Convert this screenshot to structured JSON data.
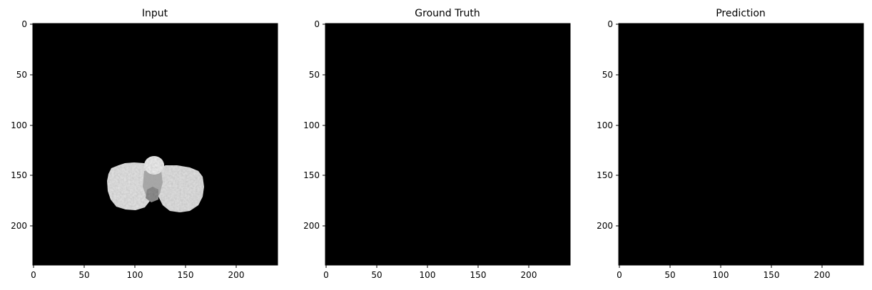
{
  "chart_data": [
    {
      "type": "heatmap",
      "title": "Input",
      "colormap": "gray",
      "background": "#000000",
      "xlim": [
        0,
        240
      ],
      "ylim": [
        240,
        0
      ],
      "xticks": [
        "0",
        "50",
        "100",
        "150",
        "200"
      ],
      "yticks": [
        "0",
        "50",
        "100",
        "150",
        "200"
      ],
      "content": "grayscale brain slice",
      "region_extent": {
        "x": [
          73,
          168
        ],
        "y": [
          133,
          188
        ]
      }
    },
    {
      "type": "heatmap",
      "title": "Ground Truth",
      "colormap": "gray",
      "background": "#000000",
      "xlim": [
        0,
        240
      ],
      "ylim": [
        240,
        0
      ],
      "xticks": [
        "0",
        "50",
        "100",
        "150",
        "200"
      ],
      "yticks": [
        "0",
        "50",
        "100",
        "150",
        "200"
      ]
    },
    {
      "type": "heatmap",
      "title": "Prediction",
      "colormap": "gray",
      "background": "#000000",
      "xlim": [
        0,
        240
      ],
      "ylim": [
        240,
        0
      ],
      "xticks": [
        "0",
        "50",
        "100",
        "150",
        "200"
      ],
      "yticks": [
        "0",
        "50",
        "100",
        "150",
        "200"
      ]
    }
  ]
}
